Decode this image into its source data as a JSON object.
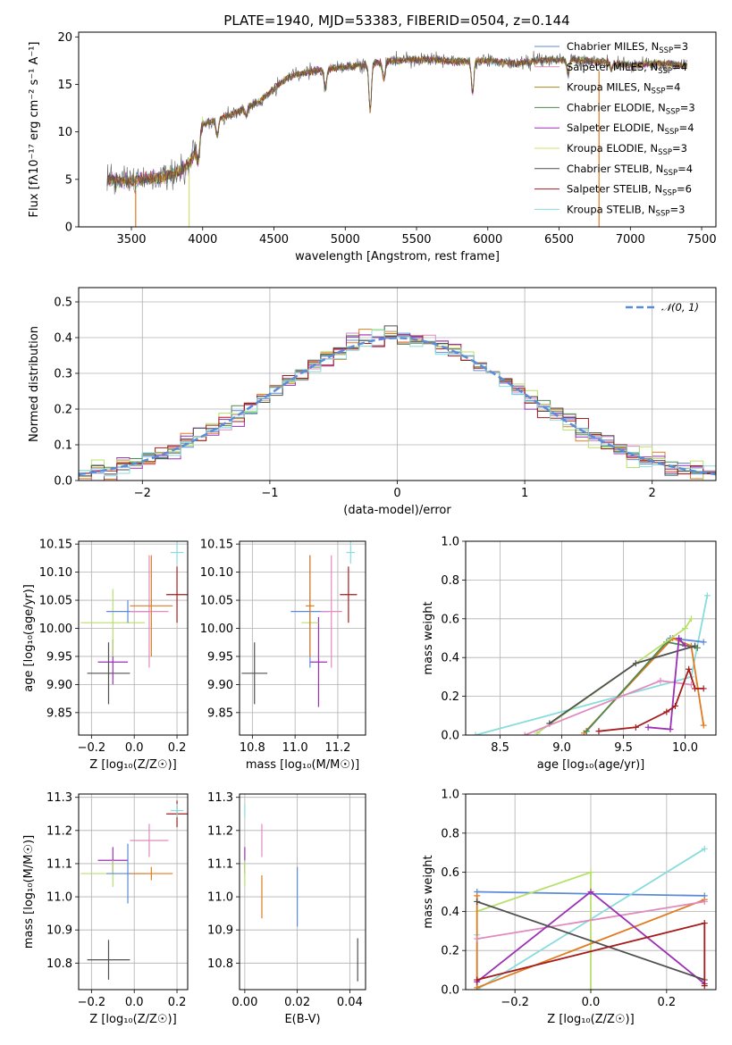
{
  "figure": {
    "title": "PLATE=1940, MJD=53383, FIBERID=0504, z=0.144"
  },
  "colors": {
    "Chabrier MILES": "#5b8bd9",
    "Salpeter MILES": "#e08ac0",
    "Kroupa MILES": "#a28a1e",
    "Chabrier ELODIE": "#4e8a4e",
    "Salpeter ELODIE": "#9b2fb5",
    "Kroupa ELODIE": "#d5e06b",
    "Chabrier STELIB": "#505050",
    "Salpeter STELIB": "#a51c1c",
    "Kroupa STELIB": "#88dcdc",
    "orange": "#e07b1f",
    "lightgreen": "#b6e06b",
    "normal_curve": "#5b8bd9"
  },
  "chart_data": [
    {
      "id": "spectrum",
      "type": "line",
      "title": "PLATE=1940, MJD=53383, FIBERID=0504, z=0.144",
      "xlabel": "wavelength [Angstrom, rest frame]",
      "ylabel": "Flux [fλ10⁻¹⁷ erg cm⁻² s⁻¹ A⁻¹]",
      "xlim": [
        3130,
        7600
      ],
      "ylim": [
        0,
        20.5
      ],
      "xticks": [
        "3500",
        "4000",
        "4500",
        "5000",
        "5500",
        "6000",
        "6500",
        "7000",
        "7500"
      ],
      "yticks": [
        "0",
        "5",
        "10",
        "15",
        "20"
      ],
      "legend_position": "top-right",
      "legend": [
        {
          "label": "Chabrier MILES, N",
          "sub": "SSP",
          "eq": "=3",
          "color": "#5b8bd9"
        },
        {
          "label": "Salpeter MILES, N",
          "sub": "SSP",
          "eq": "=4",
          "color": "#e08ac0"
        },
        {
          "label": "Kroupa MILES, N",
          "sub": "SSP",
          "eq": "=4",
          "color": "#a28a1e"
        },
        {
          "label": "Chabrier ELODIE, N",
          "sub": "SSP",
          "eq": "=3",
          "color": "#4e8a4e"
        },
        {
          "label": "Salpeter ELODIE, N",
          "sub": "SSP",
          "eq": "=4",
          "color": "#9b2fb5"
        },
        {
          "label": "Kroupa ELODIE, N",
          "sub": "SSP",
          "eq": "=3",
          "color": "#d5e06b"
        },
        {
          "label": "Chabrier STELIB, N",
          "sub": "SSP",
          "eq": "=4",
          "color": "#505050"
        },
        {
          "label": "Salpeter STELIB, N",
          "sub": "SSP",
          "eq": "=6",
          "color": "#a51c1c"
        },
        {
          "label": "Kroupa STELIB, N",
          "sub": "SSP",
          "eq": "=3",
          "color": "#88dcdc"
        }
      ],
      "continuum": [
        [
          3330,
          5.0
        ],
        [
          3500,
          4.8
        ],
        [
          3700,
          5.2
        ],
        [
          3800,
          5.6
        ],
        [
          3900,
          6.5
        ],
        [
          3950,
          8.0
        ],
        [
          4000,
          10.8
        ],
        [
          4200,
          11.8
        ],
        [
          4400,
          13.2
        ],
        [
          4600,
          15.8
        ],
        [
          4800,
          16.5
        ],
        [
          5000,
          16.8
        ],
        [
          5200,
          17.2
        ],
        [
          5400,
          17.6
        ],
        [
          5600,
          17.6
        ],
        [
          5800,
          17.4
        ],
        [
          6000,
          17.5
        ],
        [
          6200,
          17.2
        ],
        [
          6400,
          17.6
        ],
        [
          6600,
          17.6
        ],
        [
          6800,
          17.4
        ],
        [
          7000,
          17.0
        ],
        [
          7200,
          17.2
        ],
        [
          7400,
          17.0
        ]
      ],
      "absorption_lines": [
        [
          3934,
          7.5
        ],
        [
          3969,
          7.0
        ],
        [
          4102,
          9.5
        ],
        [
          4305,
          11.8
        ],
        [
          4861,
          14.5
        ],
        [
          5175,
          12.2
        ],
        [
          5270,
          15.5
        ],
        [
          5893,
          14.2
        ],
        [
          6563,
          16.0
        ],
        [
          6867,
          16.5
        ]
      ],
      "model_dropouts": [
        [
          3530,
          0,
          "#e07b1f"
        ],
        [
          3905,
          0,
          "#d5e06b"
        ],
        [
          6780,
          0,
          "#e07b1f"
        ]
      ]
    },
    {
      "id": "residuals",
      "type": "histogram",
      "xlabel": "(data-model)/error",
      "ylabel": "Normed distribution",
      "xlim": [
        -2.5,
        2.5
      ],
      "ylim": [
        0,
        0.54
      ],
      "xticks": [
        "−2",
        "−1",
        "0",
        "1",
        "2"
      ],
      "yticks": [
        "0.0",
        "0.1",
        "0.2",
        "0.3",
        "0.4",
        "0.5"
      ],
      "grid": true,
      "legend_position": "top-right",
      "legend": [
        {
          "label": "𝒩(0, 1)",
          "color": "#5b8bd9",
          "style": "dashed"
        }
      ],
      "bin_width": 0.1,
      "bin_start": -2.5,
      "series_colors": [
        "#5b8bd9",
        "#e08ac0",
        "#e07b1f",
        "#4e8a4e",
        "#9b2fb5",
        "#b6e06b",
        "#505050",
        "#a51c1c",
        "#88dcdc"
      ]
    },
    {
      "id": "age_vs_Z",
      "type": "scatter",
      "xlabel": "Z [log₁₀(Z/Z☉)]",
      "ylabel": "age  [log₁₀(age/yr)]",
      "xlim": [
        -0.26,
        0.25
      ],
      "ylim": [
        9.81,
        10.155
      ],
      "xticks": [
        "−0.2",
        "0.0",
        "0.2"
      ],
      "xtick_values": [
        -0.2,
        0.0,
        0.2
      ],
      "yticks": [
        "9.85",
        "9.90",
        "9.95",
        "10.00",
        "10.05",
        "10.10",
        "10.15"
      ],
      "ytick_values": [
        9.85,
        9.9,
        9.95,
        10.0,
        10.05,
        10.1,
        10.15
      ],
      "grid": true,
      "points": [
        {
          "x": -0.12,
          "y": 9.92,
          "xerr": 0.1,
          "yerr": 0.055,
          "color": "#505050"
        },
        {
          "x": -0.1,
          "y": 9.94,
          "xerr": 0.07,
          "yerr": 0.04,
          "color": "#9b2fb5"
        },
        {
          "x": -0.1,
          "y": 10.01,
          "xerr": 0.15,
          "yerr": 0.06,
          "color": "#b6e06b"
        },
        {
          "x": -0.03,
          "y": 10.03,
          "xerr": 0.1,
          "yerr": 0.02,
          "color": "#5b8bd9"
        },
        {
          "x": 0.07,
          "y": 10.03,
          "xerr": 0.09,
          "yerr": 0.1,
          "color": "#e08ac0"
        },
        {
          "x": 0.08,
          "y": 10.04,
          "xerr": 0.1,
          "yerr": 0.09,
          "color": "#e07b1f"
        },
        {
          "x": 0.2,
          "y": 10.06,
          "xerr": 0.05,
          "yerr": 0.05,
          "color": "#a51c1c"
        },
        {
          "x": 0.2,
          "y": 10.135,
          "xerr": 0.03,
          "yerr": 0.02,
          "color": "#88dcdc"
        }
      ]
    },
    {
      "id": "age_vs_mass",
      "type": "scatter",
      "xlabel": "mass [log₁₀(M/M☉)]",
      "xlim": [
        10.74,
        11.33
      ],
      "ylim": [
        9.81,
        10.155
      ],
      "xticks": [
        "10.8",
        "11.0",
        "11.2"
      ],
      "xtick_values": [
        10.8,
        11.0,
        11.2
      ],
      "yticks": [
        "9.85",
        "9.90",
        "9.95",
        "10.00",
        "10.05",
        "10.10",
        "10.15"
      ],
      "ytick_values": [
        9.85,
        9.9,
        9.95,
        10.0,
        10.05,
        10.1,
        10.15
      ],
      "grid": true,
      "points": [
        {
          "x": 10.81,
          "y": 9.92,
          "xerr": 0.06,
          "yerr": 0.055,
          "color": "#505050"
        },
        {
          "x": 11.11,
          "y": 9.94,
          "xerr": 0.04,
          "yerr": 0.08,
          "color": "#9b2fb5"
        },
        {
          "x": 11.07,
          "y": 10.01,
          "xerr": 0.04,
          "yerr": 0.06,
          "color": "#b6e06b"
        },
        {
          "x": 11.07,
          "y": 10.03,
          "xerr": 0.09,
          "yerr": 0.1,
          "color": "#5b8bd9"
        },
        {
          "x": 11.17,
          "y": 10.03,
          "xerr": 0.05,
          "yerr": 0.1,
          "color": "#e08ac0"
        },
        {
          "x": 11.07,
          "y": 10.04,
          "xerr": 0.02,
          "yerr": 0.09,
          "color": "#e07b1f"
        },
        {
          "x": 11.25,
          "y": 10.06,
          "xerr": 0.04,
          "yerr": 0.05,
          "color": "#a51c1c"
        },
        {
          "x": 11.26,
          "y": 10.135,
          "xerr": 0.02,
          "yerr": 0.02,
          "color": "#88dcdc"
        }
      ]
    },
    {
      "id": "weight_vs_age",
      "type": "line",
      "xlabel": "age  [log₁₀(age/yr)]",
      "ylabel": "mass weight",
      "xlim": [
        8.22,
        10.25
      ],
      "ylim": [
        0,
        1.0
      ],
      "xticks": [
        "8.5",
        "9.0",
        "9.5",
        "10.0"
      ],
      "xtick_values": [
        8.5,
        9.0,
        9.5,
        10.0
      ],
      "yticks": [
        "0.0",
        "0.2",
        "0.4",
        "0.6",
        "0.8",
        "1.0"
      ],
      "ytick_values": [
        0,
        0.2,
        0.4,
        0.6,
        0.8,
        1.0
      ],
      "grid": true,
      "series": [
        {
          "color": "#88dcdc",
          "x": [
            8.3,
            10.05,
            10.18
          ],
          "y": [
            0.0,
            0.3,
            0.72
          ]
        },
        {
          "color": "#5b8bd9",
          "x": [
            9.2,
            9.88,
            10.15
          ],
          "y": [
            0.02,
            0.5,
            0.48
          ]
        },
        {
          "color": "#e07b1f",
          "x": [
            9.18,
            9.9,
            10.05,
            10.15
          ],
          "y": [
            0.01,
            0.5,
            0.46,
            0.05
          ]
        },
        {
          "color": "#4e8a4e",
          "x": [
            9.2,
            9.85,
            10.1
          ],
          "y": [
            0.02,
            0.48,
            0.45
          ]
        },
        {
          "color": "#b6e06b",
          "x": [
            8.8,
            10.0,
            10.05
          ],
          "y": [
            0.01,
            0.55,
            0.6
          ]
        },
        {
          "color": "#505050",
          "x": [
            8.9,
            9.6,
            10.08
          ],
          "y": [
            0.06,
            0.37,
            0.46
          ]
        },
        {
          "color": "#e08ac0",
          "x": [
            8.7,
            9.8,
            10.05
          ],
          "y": [
            0.0,
            0.28,
            0.26
          ]
        },
        {
          "color": "#9b2fb5",
          "x": [
            9.7,
            9.88,
            9.95,
            10.0
          ],
          "y": [
            0.04,
            0.03,
            0.5,
            0.46
          ]
        },
        {
          "color": "#a51c1c",
          "x": [
            9.3,
            9.6,
            9.85,
            9.92,
            10.03,
            10.08,
            10.15
          ],
          "y": [
            0.02,
            0.04,
            0.12,
            0.15,
            0.34,
            0.24,
            0.24
          ]
        }
      ]
    },
    {
      "id": "mass_vs_Z",
      "type": "scatter",
      "xlabel": "Z [log₁₀(Z/Z☉)]",
      "ylabel": "mass [log₁₀(M/M☉)]",
      "xlim": [
        -0.26,
        0.25
      ],
      "ylim": [
        10.72,
        11.31
      ],
      "xticks": [
        "−0.2",
        "0.0",
        "0.2"
      ],
      "xtick_values": [
        -0.2,
        0.0,
        0.2
      ],
      "yticks": [
        "10.8",
        "10.9",
        "11.0",
        "11.1",
        "11.2",
        "11.3"
      ],
      "ytick_values": [
        10.8,
        10.9,
        11.0,
        11.1,
        11.2,
        11.3
      ],
      "grid": true,
      "points": [
        {
          "x": -0.12,
          "y": 10.81,
          "xerr": 0.1,
          "yerr": 0.06,
          "color": "#505050"
        },
        {
          "x": -0.1,
          "y": 11.11,
          "xerr": 0.07,
          "yerr": 0.04,
          "color": "#9b2fb5"
        },
        {
          "x": -0.1,
          "y": 11.07,
          "xerr": 0.15,
          "yerr": 0.04,
          "color": "#b6e06b"
        },
        {
          "x": -0.03,
          "y": 11.07,
          "xerr": 0.1,
          "yerr": 0.09,
          "color": "#5b8bd9"
        },
        {
          "x": 0.07,
          "y": 11.17,
          "xerr": 0.09,
          "yerr": 0.05,
          "color": "#e08ac0"
        },
        {
          "x": 0.08,
          "y": 11.07,
          "xerr": 0.1,
          "yerr": 0.02,
          "color": "#e07b1f"
        },
        {
          "x": 0.2,
          "y": 11.25,
          "xerr": 0.05,
          "yerr": 0.04,
          "color": "#a51c1c"
        },
        {
          "x": 0.2,
          "y": 11.26,
          "xerr": 0.03,
          "yerr": 0.02,
          "color": "#88dcdc"
        }
      ]
    },
    {
      "id": "mass_vs_EBV",
      "type": "scatter",
      "xlabel": "E(B-V)",
      "xlim": [
        -0.002,
        0.046
      ],
      "ylim": [
        10.72,
        11.31
      ],
      "xticks": [
        "0.00",
        "0.02",
        "0.04"
      ],
      "xtick_values": [
        0.0,
        0.02,
        0.04
      ],
      "yticks": [
        "10.8",
        "10.9",
        "11.0",
        "11.1",
        "11.2",
        "11.3"
      ],
      "ytick_values": [
        10.8,
        10.9,
        11.0,
        11.1,
        11.2,
        11.3
      ],
      "grid": true,
      "points": [
        {
          "x": 0.0,
          "y": 11.26,
          "xerr": 0,
          "yerr": 0.02,
          "color": "#88dcdc"
        },
        {
          "x": 0.0,
          "y": 11.11,
          "xerr": 0,
          "yerr": 0.04,
          "color": "#9b2fb5"
        },
        {
          "x": 0.0,
          "y": 11.07,
          "xerr": 0,
          "yerr": 0.04,
          "color": "#b6e06b"
        },
        {
          "x": 0.0065,
          "y": 11.17,
          "xerr": 0,
          "yerr": 0.05,
          "color": "#e08ac0"
        },
        {
          "x": 0.0065,
          "y": 11.0,
          "xerr": 0,
          "yerr": 0.065,
          "color": "#e07b1f"
        },
        {
          "x": 0.02,
          "y": 11.0,
          "xerr": 0,
          "yerr": 0.09,
          "color": "#5b8bd9"
        },
        {
          "x": 0.043,
          "y": 10.81,
          "xerr": 0,
          "yerr": 0.065,
          "color": "#505050"
        }
      ]
    },
    {
      "id": "weight_vs_Z",
      "type": "line",
      "xlabel": "Z [log₁₀(Z/Z☉)]",
      "ylabel": "mass weight",
      "xlim": [
        -0.33,
        0.33
      ],
      "ylim": [
        0,
        1.0
      ],
      "xticks": [
        "−0.2",
        "0.0",
        "0.2"
      ],
      "xtick_values": [
        -0.2,
        0.0,
        0.2
      ],
      "yticks": [
        "0.0",
        "0.2",
        "0.4",
        "0.6",
        "0.8",
        "1.0"
      ],
      "ytick_values": [
        0,
        0.2,
        0.4,
        0.6,
        0.8,
        1.0
      ],
      "grid": true,
      "series": [
        {
          "color": "#5b8bd9",
          "x": [
            -0.3,
            0.3
          ],
          "y": [
            0.5,
            0.48
          ]
        },
        {
          "color": "#88dcdc",
          "x": [
            -0.3,
            -0.3,
            0.3
          ],
          "y": [
            0.28,
            0.0,
            0.72
          ]
        },
        {
          "color": "#b6e06b",
          "x": [
            -0.3,
            0.0,
            0.0
          ],
          "y": [
            0.4,
            0.6,
            0.0
          ]
        },
        {
          "color": "#e07b1f",
          "x": [
            -0.3,
            -0.3,
            0.3
          ],
          "y": [
            0.48,
            0.01,
            0.46
          ]
        },
        {
          "color": "#e08ac0",
          "x": [
            -0.3,
            0.3
          ],
          "y": [
            0.26,
            0.45
          ]
        },
        {
          "color": "#9b2fb5",
          "x": [
            -0.3,
            0.0,
            0.3
          ],
          "y": [
            0.04,
            0.5,
            0.03
          ]
        },
        {
          "color": "#505050",
          "x": [
            -0.3,
            0.3
          ],
          "y": [
            0.45,
            0.05
          ]
        },
        {
          "color": "#a51c1c",
          "x": [
            -0.3,
            0.3,
            0.3
          ],
          "y": [
            0.05,
            0.34,
            0.02
          ]
        }
      ]
    }
  ]
}
